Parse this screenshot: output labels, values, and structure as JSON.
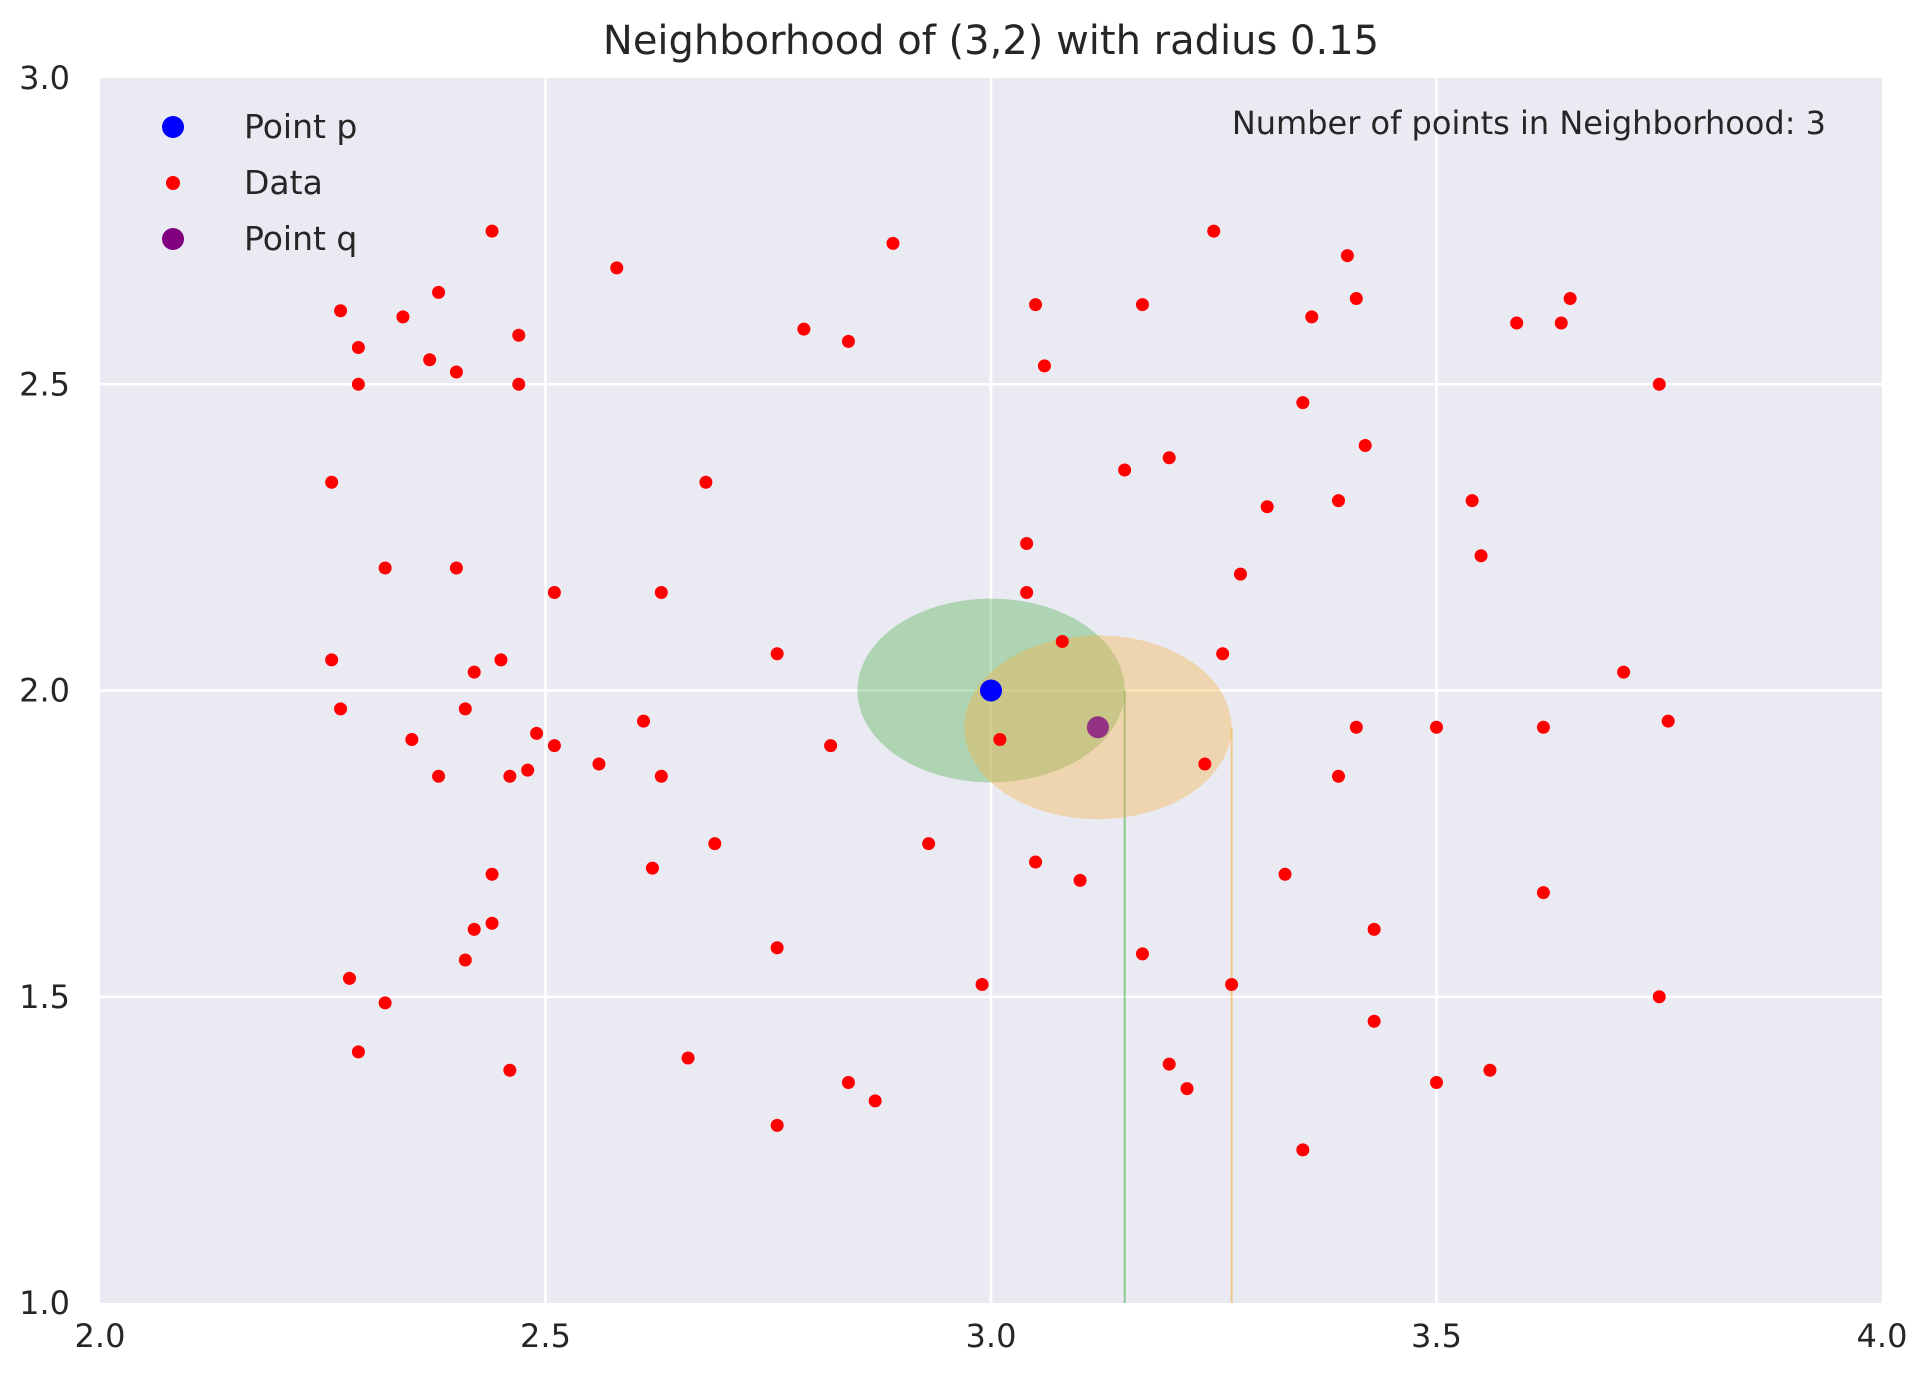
{
  "chart_data": {
    "type": "scatter",
    "title": "Neighborhood of (3,2) with radius 0.15",
    "xlabel": "",
    "ylabel": "",
    "xlim": [
      2.0,
      4.0
    ],
    "ylim": [
      1.0,
      3.0
    ],
    "x_ticks": [
      "2.0",
      "2.5",
      "3.0",
      "3.5",
      "4.0"
    ],
    "y_ticks": [
      "1.0",
      "1.5",
      "2.0",
      "2.5",
      "3.0"
    ],
    "x_tick_values": [
      2.0,
      2.5,
      3.0,
      3.5,
      4.0
    ],
    "y_tick_values": [
      1.0,
      1.5,
      2.0,
      2.5,
      3.0
    ],
    "grid": true,
    "legend_position": "top-left",
    "annotation": "Number of points in Neighborhood: 3",
    "colors": {
      "background": "#eaeaf2",
      "point_p": "#0000ff",
      "data": "#ff0000",
      "point_q": "#800080",
      "neighborhood_p": "#4caf50",
      "neighborhood_q": "#f5b041"
    },
    "series": [
      {
        "name": "Point p",
        "marker": "large-dot",
        "color": "#0000ff",
        "points": [
          [
            3.0,
            2.0
          ]
        ]
      },
      {
        "name": "Data",
        "marker": "small-dot",
        "color": "#ff0000",
        "points": [
          [
            2.27,
            2.62
          ],
          [
            2.29,
            2.56
          ],
          [
            2.29,
            2.5
          ],
          [
            2.34,
            2.61
          ],
          [
            2.38,
            2.65
          ],
          [
            2.37,
            2.54
          ],
          [
            2.4,
            2.52
          ],
          [
            2.44,
            2.75
          ],
          [
            2.47,
            2.58
          ],
          [
            2.47,
            2.5
          ],
          [
            2.58,
            2.69
          ],
          [
            2.79,
            2.59
          ],
          [
            2.84,
            2.57
          ],
          [
            2.89,
            2.73
          ],
          [
            2.26,
            2.34
          ],
          [
            2.32,
            2.2
          ],
          [
            2.4,
            2.2
          ],
          [
            2.51,
            2.16
          ],
          [
            2.63,
            2.16
          ],
          [
            2.68,
            2.34
          ],
          [
            2.76,
            2.06
          ],
          [
            2.26,
            2.05
          ],
          [
            2.27,
            1.97
          ],
          [
            2.35,
            1.92
          ],
          [
            2.38,
            1.86
          ],
          [
            2.41,
            1.97
          ],
          [
            2.42,
            2.03
          ],
          [
            2.45,
            2.05
          ],
          [
            2.46,
            1.86
          ],
          [
            2.48,
            1.87
          ],
          [
            2.49,
            1.93
          ],
          [
            2.51,
            1.91
          ],
          [
            2.56,
            1.88
          ],
          [
            2.61,
            1.95
          ],
          [
            2.63,
            1.86
          ],
          [
            2.82,
            1.91
          ],
          [
            2.62,
            1.71
          ],
          [
            2.69,
            1.75
          ],
          [
            2.44,
            1.7
          ],
          [
            2.42,
            1.61
          ],
          [
            2.44,
            1.62
          ],
          [
            2.41,
            1.56
          ],
          [
            2.28,
            1.53
          ],
          [
            2.32,
            1.49
          ],
          [
            2.29,
            1.41
          ],
          [
            2.46,
            1.38
          ],
          [
            2.66,
            1.4
          ],
          [
            2.76,
            1.58
          ],
          [
            2.76,
            1.29
          ],
          [
            2.84,
            1.36
          ],
          [
            2.87,
            1.33
          ],
          [
            2.93,
            1.75
          ],
          [
            2.99,
            1.52
          ],
          [
            3.01,
            1.92
          ],
          [
            3.05,
            1.72
          ],
          [
            3.1,
            1.69
          ],
          [
            3.04,
            2.24
          ],
          [
            3.04,
            2.16
          ],
          [
            3.08,
            2.08
          ],
          [
            3.05,
            2.63
          ],
          [
            3.06,
            2.53
          ],
          [
            3.17,
            2.63
          ],
          [
            3.25,
            2.75
          ],
          [
            3.15,
            2.36
          ],
          [
            3.2,
            2.38
          ],
          [
            3.35,
            2.47
          ],
          [
            3.36,
            2.61
          ],
          [
            3.4,
            2.71
          ],
          [
            3.41,
            2.64
          ],
          [
            3.42,
            2.4
          ],
          [
            3.31,
            2.3
          ],
          [
            3.39,
            2.31
          ],
          [
            3.28,
            2.19
          ],
          [
            3.26,
            2.06
          ],
          [
            3.24,
            1.88
          ],
          [
            3.17,
            1.57
          ],
          [
            3.27,
            1.52
          ],
          [
            3.2,
            1.39
          ],
          [
            3.22,
            1.35
          ],
          [
            3.33,
            1.7
          ],
          [
            3.35,
            1.25
          ],
          [
            3.39,
            1.86
          ],
          [
            3.41,
            1.94
          ],
          [
            3.43,
            1.61
          ],
          [
            3.43,
            1.46
          ],
          [
            3.5,
            1.94
          ],
          [
            3.5,
            1.36
          ],
          [
            3.56,
            1.38
          ],
          [
            3.54,
            2.31
          ],
          [
            3.55,
            2.22
          ],
          [
            3.59,
            2.6
          ],
          [
            3.64,
            2.6
          ],
          [
            3.65,
            2.64
          ],
          [
            3.75,
            2.5
          ],
          [
            3.71,
            2.03
          ],
          [
            3.76,
            1.95
          ],
          [
            3.62,
            1.94
          ],
          [
            3.62,
            1.67
          ],
          [
            3.75,
            1.5
          ]
        ]
      },
      {
        "name": "Point q",
        "marker": "large-dot",
        "color": "#800080",
        "points": [
          [
            3.12,
            1.94
          ]
        ]
      }
    ],
    "neighborhoods": [
      {
        "center": [
          3.0,
          2.0
        ],
        "radius": 0.15,
        "color": "#4caf50",
        "guide_x": 3.15
      },
      {
        "center": [
          3.12,
          1.94
        ],
        "radius": 0.15,
        "color": "#f5b041",
        "guide_x": 3.27
      }
    ]
  }
}
